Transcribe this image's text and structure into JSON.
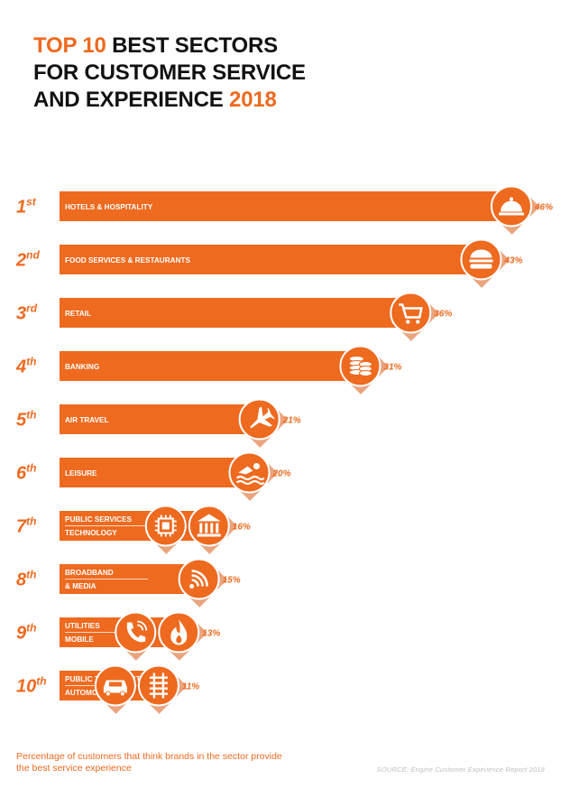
{
  "header": {
    "title_accent_1": "TOP 10",
    "title_part_1": " BEST SECTORS",
    "title_line_2": "FOR CUSTOMER SERVICE",
    "title_part_3": "AND EXPERIENCE ",
    "title_accent_3": "2018"
  },
  "colors": {
    "accent": "#EE6A1F",
    "shadow": "#D85A14",
    "text": "#111111"
  },
  "chart_data": {
    "type": "bar",
    "orientation": "horizontal",
    "unit": "%",
    "xlim": [
      0,
      46
    ],
    "grid": false,
    "rows": [
      {
        "rank_num": "1",
        "rank_suffix": "st",
        "labels": [
          "HOTELS & HOSPITALITY"
        ],
        "value": 46,
        "value_label": "46%",
        "icons": [
          "bell-icon"
        ]
      },
      {
        "rank_num": "2",
        "rank_suffix": "nd",
        "labels": [
          "FOOD SERVICES & RESTAURANTS"
        ],
        "value": 43,
        "value_label": "43%",
        "icons": [
          "burger-icon"
        ]
      },
      {
        "rank_num": "3",
        "rank_suffix": "rd",
        "labels": [
          "RETAIL"
        ],
        "value": 36,
        "value_label": "36%",
        "icons": [
          "cart-icon"
        ]
      },
      {
        "rank_num": "4",
        "rank_suffix": "th",
        "labels": [
          "BANKING"
        ],
        "value": 31,
        "value_label": "31%",
        "icons": [
          "coins-icon"
        ]
      },
      {
        "rank_num": "5",
        "rank_suffix": "th",
        "labels": [
          "AIR TRAVEL"
        ],
        "value": 21,
        "value_label": "21%",
        "icons": [
          "plane-icon"
        ]
      },
      {
        "rank_num": "6",
        "rank_suffix": "th",
        "labels": [
          "LEISURE"
        ],
        "value": 20,
        "value_label": "20%",
        "icons": [
          "swimmer-icon"
        ]
      },
      {
        "rank_num": "7",
        "rank_suffix": "th",
        "labels": [
          "PUBLIC SERVICES",
          "TECHNOLOGY"
        ],
        "value": 16,
        "value_label": "16%",
        "icons": [
          "chip-icon",
          "building-icon"
        ]
      },
      {
        "rank_num": "8",
        "rank_suffix": "th",
        "labels": [
          "BROADBAND",
          "& MEDIA"
        ],
        "value": 15,
        "value_label": "15%",
        "icons": [
          "wifi-icon"
        ]
      },
      {
        "rank_num": "9",
        "rank_suffix": "th",
        "labels": [
          "UTILITIES",
          "MOBILE"
        ],
        "value": 13,
        "value_label": "13%",
        "icons": [
          "phone-icon",
          "flame-icon"
        ]
      },
      {
        "rank_num": "10",
        "rank_suffix": "th",
        "labels": [
          "PUBLIC TRANSPORT",
          "AUTOMOTIVE"
        ],
        "value": 11,
        "value_label": "11%",
        "icons": [
          "car-icon",
          "rail-icon"
        ]
      }
    ]
  },
  "footnote": "Percentage of customers that think brands in the sector provide the best service experience",
  "source": "SOURCE: Engine Customer Experience Report 2018"
}
